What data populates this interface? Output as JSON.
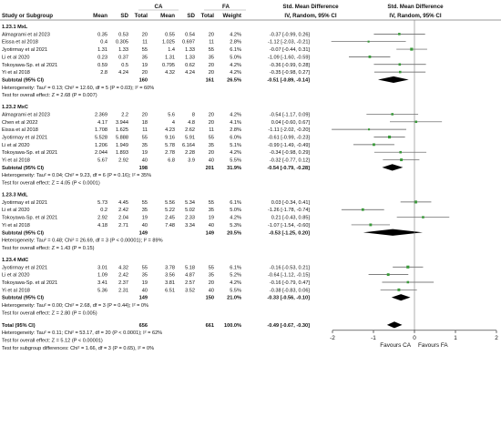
{
  "chart_data": {
    "type": "forest",
    "group_labels": [
      "CA",
      "FA"
    ],
    "column_headers": {
      "study": "Study or Subgroup",
      "mean": "Mean",
      "sd": "SD",
      "total": "Total",
      "weight": "Weight",
      "effect_title": "Std. Mean Difference",
      "effect_subtitle": "IV, Random, 95% CI"
    },
    "subgroups": [
      {
        "label": "1.23.1 MxL",
        "studies": [
          {
            "name": "Almagrami et al 2023",
            "ca": [
              "0.35",
              "0.53",
              "20"
            ],
            "fa": [
              "0.55",
              "0.54",
              "20"
            ],
            "weight": "4.2%",
            "ci_text": "-0.37 [-0.99, 0.26]",
            "smd": -0.37,
            "lo": -0.99,
            "hi": 0.26
          },
          {
            "name": "Eissa et al 2018",
            "ca": [
              "0.4",
              "0.305",
              "11"
            ],
            "fa": [
              "1.025",
              "0.697",
              "11"
            ],
            "weight": "2.8%",
            "ci_text": "-1.12 [-2.03, -0.21]",
            "smd": -1.12,
            "lo": -2.03,
            "hi": -0.21
          },
          {
            "name": "Jyotirmay et al 2021",
            "ca": [
              "1.31",
              "1.33",
              "55"
            ],
            "fa": [
              "1.4",
              "1.33",
              "55"
            ],
            "weight": "6.1%",
            "ci_text": "-0.07 [-0.44, 0.31]",
            "smd": -0.07,
            "lo": -0.44,
            "hi": 0.31
          },
          {
            "name": "Li et al 2020",
            "ca": [
              "0.23",
              "0.37",
              "35"
            ],
            "fa": [
              "1.31",
              "1.33",
              "35"
            ],
            "weight": "5.0%",
            "ci_text": "-1.09 [-1.60, -0.59]",
            "smd": -1.09,
            "lo": -1.6,
            "hi": -0.59
          },
          {
            "name": "Tokoyawa-Sp. et al 2021",
            "ca": [
              "0.59",
              "0.5",
              "19"
            ],
            "fa": [
              "0.795",
              "0.62",
              "20"
            ],
            "weight": "4.2%",
            "ci_text": "-0.36 [-0.99, 0.28]",
            "smd": -0.36,
            "lo": -0.99,
            "hi": 0.28
          },
          {
            "name": "Yi et al 2018",
            "ca": [
              "2.8",
              "4.24",
              "20"
            ],
            "fa": [
              "4.32",
              "4.24",
              "20"
            ],
            "weight": "4.2%",
            "ci_text": "-0.35 [-0.98, 0.27]",
            "smd": -0.35,
            "lo": -0.98,
            "hi": 0.27
          }
        ],
        "subtotal": {
          "label": "Subtotal (95% CI)",
          "ca_total": "160",
          "fa_total": "161",
          "weight": "26.5%",
          "ci_text": "-0.51 [-0.89, -0.14]",
          "smd": -0.51,
          "lo": -0.89,
          "hi": -0.14
        },
        "heterogeneity": "Heterogeneity: Tau² = 0.13; Chi² = 12.60, df = 5 (P = 0.03); I² = 60%",
        "overall_test": "Test for overall effect: Z = 2.68 (P = 0.007)"
      },
      {
        "label": "1.23.2 MxC",
        "studies": [
          {
            "name": "Almagrami et al 2023",
            "ca": [
              "2.369",
              "2.2",
              "20"
            ],
            "fa": [
              "5.6",
              "8",
              "20"
            ],
            "weight": "4.2%",
            "ci_text": "-0.54 [-1.17, 0.09]",
            "smd": -0.54,
            "lo": -1.17,
            "hi": 0.09
          },
          {
            "name": "Chen et al 2022",
            "ca": [
              "4.17",
              "3.944",
              "18"
            ],
            "fa": [
              "4",
              "4.8",
              "20"
            ],
            "weight": "4.1%",
            "ci_text": "0.04 [-0.60, 0.67]",
            "smd": 0.04,
            "lo": -0.6,
            "hi": 0.67
          },
          {
            "name": "Eissa et al 2018",
            "ca": [
              "1.708",
              "1.625",
              "11"
            ],
            "fa": [
              "4.23",
              "2.62",
              "11"
            ],
            "weight": "2.8%",
            "ci_text": "-1.11 [-2.02, -0.20]",
            "smd": -1.11,
            "lo": -2.02,
            "hi": -0.2
          },
          {
            "name": "Jyotirmay et al 2021",
            "ca": [
              "5.528",
              "5.888",
              "55"
            ],
            "fa": [
              "9.16",
              "5.91",
              "55"
            ],
            "weight": "6.0%",
            "ci_text": "-0.61 [-0.99, -0.23]",
            "smd": -0.61,
            "lo": -0.99,
            "hi": -0.23
          },
          {
            "name": "Li et al 2020",
            "ca": [
              "1.206",
              "1.949",
              "35"
            ],
            "fa": [
              "5.78",
              "6.164",
              "35"
            ],
            "weight": "5.1%",
            "ci_text": "-0.99 [-1.49, -0.49]",
            "smd": -0.99,
            "lo": -1.49,
            "hi": -0.49
          },
          {
            "name": "Tokoyawa-Sp. et al 2021",
            "ca": [
              "2.044",
              "1.893",
              "19"
            ],
            "fa": [
              "2.78",
              "2.28",
              "20"
            ],
            "weight": "4.2%",
            "ci_text": "-0.34 [-0.98, 0.29]",
            "smd": -0.34,
            "lo": -0.98,
            "hi": 0.29
          },
          {
            "name": "Yi et al 2018",
            "ca": [
              "5.67",
              "2.92",
              "40"
            ],
            "fa": [
              "6.8",
              "3.9",
              "40"
            ],
            "weight": "5.5%",
            "ci_text": "-0.32 [-0.77, 0.12]",
            "smd": -0.32,
            "lo": -0.77,
            "hi": 0.12
          }
        ],
        "subtotal": {
          "label": "Subtotal (95% CI)",
          "ca_total": "198",
          "fa_total": "201",
          "weight": "31.9%",
          "ci_text": "-0.54 [-0.79, -0.28]",
          "smd": -0.54,
          "lo": -0.79,
          "hi": -0.28
        },
        "heterogeneity": "Heterogeneity: Tau² = 0.04; Chi² = 9.23, df = 6 (P = 0.16); I² = 35%",
        "overall_test": "Test for overall effect: Z = 4.05 (P < 0.0001)"
      },
      {
        "label": "1.23.3 MdL",
        "studies": [
          {
            "name": "Jyotirmay et al 2021",
            "ca": [
              "5.73",
              "4.45",
              "55"
            ],
            "fa": [
              "5.56",
              "5.34",
              "55"
            ],
            "weight": "6.1%",
            "ci_text": "0.03 [-0.34, 0.41]",
            "smd": 0.03,
            "lo": -0.34,
            "hi": 0.41
          },
          {
            "name": "Li et al 2020",
            "ca": [
              "0.2",
              "2.42",
              "35"
            ],
            "fa": [
              "5.22",
              "5.02",
              "35"
            ],
            "weight": "5.0%",
            "ci_text": "-1.26 [-1.78, -0.74]",
            "smd": -1.26,
            "lo": -1.78,
            "hi": -0.74
          },
          {
            "name": "Tokoyawa-Sp. et al 2021",
            "ca": [
              "2.92",
              "2.04",
              "19"
            ],
            "fa": [
              "2.45",
              "2.33",
              "19"
            ],
            "weight": "4.2%",
            "ci_text": "0.21 [-0.43, 0.85]",
            "smd": 0.21,
            "lo": -0.43,
            "hi": 0.85
          },
          {
            "name": "Yi et al 2018",
            "ca": [
              "4.18",
              "2.71",
              "40"
            ],
            "fa": [
              "7.48",
              "3.34",
              "40"
            ],
            "weight": "5.3%",
            "ci_text": "-1.07 [-1.54, -0.60]",
            "smd": -1.07,
            "lo": -1.54,
            "hi": -0.6
          }
        ],
        "subtotal": {
          "label": "Subtotal (95% CI)",
          "ca_total": "149",
          "fa_total": "149",
          "weight": "20.5%",
          "ci_text": "-0.53 [-1.25, 0.20]",
          "smd": -0.53,
          "lo": -1.25,
          "hi": 0.2
        },
        "heterogeneity": "Heterogeneity: Tau² = 0.48; Chi² = 26.69, df = 3 (P < 0.00001); I² = 89%",
        "overall_test": "Test for overall effect: Z = 1.43 (P = 0.15)"
      },
      {
        "label": "1.23.4 MdC",
        "studies": [
          {
            "name": "Jyotirmay et al 2021",
            "ca": [
              "3.01",
              "4.32",
              "55"
            ],
            "fa": [
              "3.78",
              "5.18",
              "55"
            ],
            "weight": "6.1%",
            "ci_text": "-0.16 [-0.53, 0.21]",
            "smd": -0.16,
            "lo": -0.53,
            "hi": 0.21
          },
          {
            "name": "Li et al 2020",
            "ca": [
              "1.09",
              "2.42",
              "35"
            ],
            "fa": [
              "3.56",
              "4.87",
              "35"
            ],
            "weight": "5.2%",
            "ci_text": "-0.64 [-1.12, -0.15]",
            "smd": -0.64,
            "lo": -1.12,
            "hi": -0.15
          },
          {
            "name": "Tokoyawa-Sp. et al 2021",
            "ca": [
              "3.41",
              "2.37",
              "19"
            ],
            "fa": [
              "3.81",
              "2.57",
              "20"
            ],
            "weight": "4.2%",
            "ci_text": "-0.16 [-0.79, 0.47]",
            "smd": -0.16,
            "lo": -0.79,
            "hi": 0.47
          },
          {
            "name": "Yi et al 2018",
            "ca": [
              "5.36",
              "2.31",
              "40"
            ],
            "fa": [
              "6.51",
              "3.52",
              "40"
            ],
            "weight": "5.5%",
            "ci_text": "-0.38 [-0.83, 0.06]",
            "smd": -0.38,
            "lo": -0.83,
            "hi": 0.06
          }
        ],
        "subtotal": {
          "label": "Subtotal (95% CI)",
          "ca_total": "149",
          "fa_total": "150",
          "weight": "21.0%",
          "ci_text": "-0.33 [-0.56, -0.10]",
          "smd": -0.33,
          "lo": -0.56,
          "hi": -0.1
        },
        "heterogeneity": "Heterogeneity: Tau² = 0.00; Chi² = 2.68, df = 3 (P = 0.44); I² = 0%",
        "overall_test": "Test for overall effect: Z = 2.80 (P = 0.005)"
      }
    ],
    "total": {
      "label": "Total (95% CI)",
      "ca_total": "656",
      "fa_total": "661",
      "weight": "100.0%",
      "ci_text": "-0.49 [-0.67, -0.30]",
      "smd": -0.49,
      "lo": -0.67,
      "hi": -0.3
    },
    "footer": [
      "Heterogeneity: Tau² = 0.11; Chi² = 53.17, df = 20 (P < 0.0001); I² = 62%",
      "Test for overall effect: Z = 5.12 (P < 0.00001)",
      "Test for subgroup differences: Chi² = 1.66, df = 3 (P = 0.65), I² = 0%"
    ],
    "x_axis": {
      "ticks": [
        -2,
        -1,
        0,
        1,
        2
      ],
      "xlim": [
        -2,
        2
      ]
    },
    "favours": {
      "left": "Favours CA",
      "right": "Favours FA"
    },
    "colors": {
      "ci_marker": "#3a9a3a",
      "diamond": "#000000",
      "line": "#555555"
    }
  }
}
